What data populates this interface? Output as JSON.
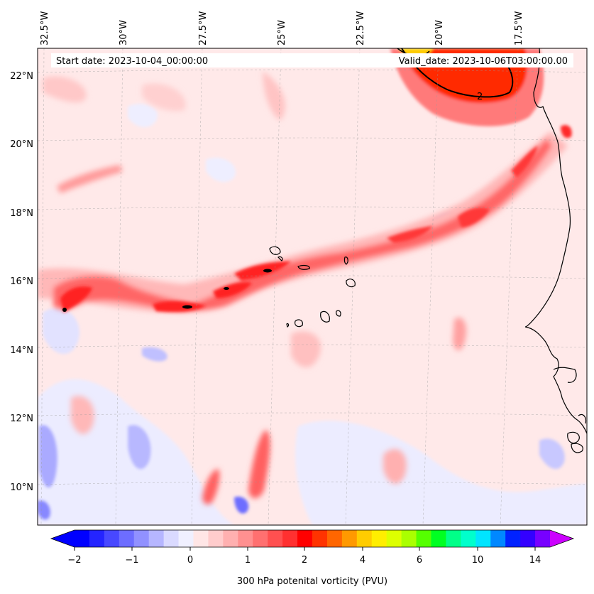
{
  "map": {
    "start_date": "Start date: 2023-10-04_00:00:00",
    "valid_date": "Valid_date: 2023-10-06T03:00:00.00",
    "lon_labels": [
      "32.5°W",
      "30°W",
      "27.5°W",
      "25°W",
      "22.5°W",
      "20°W",
      "17.5°W"
    ],
    "lat_labels": [
      "22°N",
      "20°N",
      "18°N",
      "16°N",
      "14°N",
      "12°N",
      "10°N"
    ],
    "contour_label": "2"
  },
  "colorbar": {
    "label": "300 hPa potenital vorticity (PVU)",
    "tick_labels": [
      "−2",
      "−1",
      "0",
      "1",
      "2",
      "4",
      "6",
      "10",
      "14"
    ],
    "colors": [
      "#0000ff",
      "#2424ff",
      "#4848ff",
      "#6d6dff",
      "#9191ff",
      "#b6b6ff",
      "#dadaff",
      "#f0f0ff",
      "#ffe6e6",
      "#ffcccc",
      "#ffb0b0",
      "#ff9090",
      "#ff7070",
      "#ff5050",
      "#ff3030",
      "#ff0000",
      "#ff3300",
      "#ff6600",
      "#ff9900",
      "#ffcc00",
      "#ffee00",
      "#ddff00",
      "#aaff00",
      "#55ff00",
      "#00ff22",
      "#00ff88",
      "#00ffcc",
      "#00e5ff",
      "#0088ff",
      "#0022ff",
      "#3300ff",
      "#7700ff"
    ],
    "extend_min_color": "#0000ff",
    "extend_max_color": "#cc00ff"
  },
  "colors": {
    "background": "#ffe9e9",
    "pv_low": "#e9e9ff",
    "pv_mid": "#ff9a9a",
    "pv_high": "#ff2a2a",
    "pv_max": "#ff4400",
    "coast": "#000000"
  }
}
